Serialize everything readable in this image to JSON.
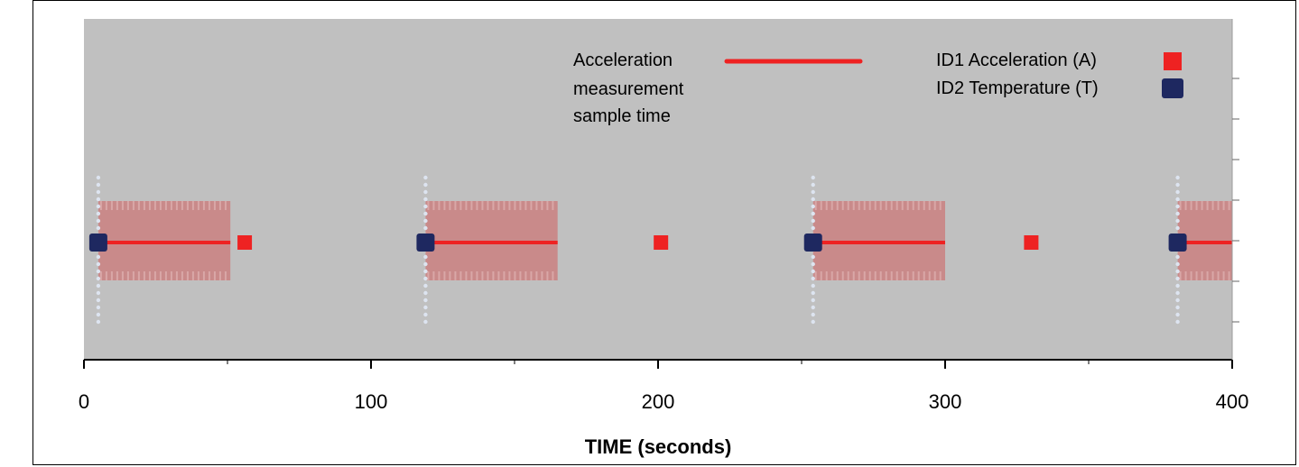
{
  "chart_data": {
    "type": "scatter",
    "title": "",
    "xlabel": "TIME (seconds)",
    "ylabel": "",
    "xlim": [
      0,
      400
    ],
    "xticks": [
      "0",
      "100",
      "200",
      "300",
      "400"
    ],
    "xtick_values": [
      0,
      100,
      200,
      300,
      400
    ],
    "grid": false,
    "legend_position": "top-right",
    "legend": {
      "line_label_lines": [
        "Acceleration",
        "measurement",
        "sample time"
      ],
      "id1_label": "ID1 Acceleration (A)",
      "id2_label": "ID2 Temperature (T)"
    },
    "colors": {
      "plot_bg": "#c0c0c0",
      "sample_line": "#ee2222",
      "sample_band": "#c98a8a",
      "id1": "#ee2222",
      "id2": "#1e2860",
      "dots": "#dde4f0"
    },
    "acceleration_sample_windows": [
      {
        "start": 5,
        "end": 51
      },
      {
        "start": 119,
        "end": 165
      },
      {
        "start": 254,
        "end": 300
      },
      {
        "start": 381,
        "end": 400
      }
    ],
    "series": [
      {
        "name": "ID1 Acceleration (A)",
        "x": [
          56,
          201,
          330
        ]
      },
      {
        "name": "ID2 Temperature (T)",
        "x": [
          5,
          119,
          254,
          381
        ]
      }
    ]
  }
}
